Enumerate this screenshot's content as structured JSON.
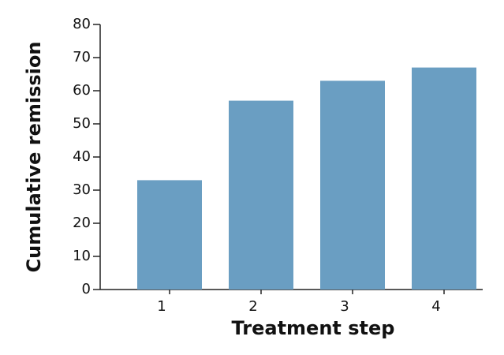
{
  "chart_data": {
    "type": "bar",
    "x_label": "Treatment step",
    "y_label": "Cumulative remission",
    "categories": [
      "1",
      "2",
      "3",
      "4"
    ],
    "values": [
      33,
      57,
      63,
      67
    ],
    "color": "#6a9ec2",
    "ylim": [
      0,
      80
    ],
    "yticks": [
      0,
      10,
      20,
      30,
      40,
      50,
      60,
      70,
      80
    ],
    "grid": false
  }
}
